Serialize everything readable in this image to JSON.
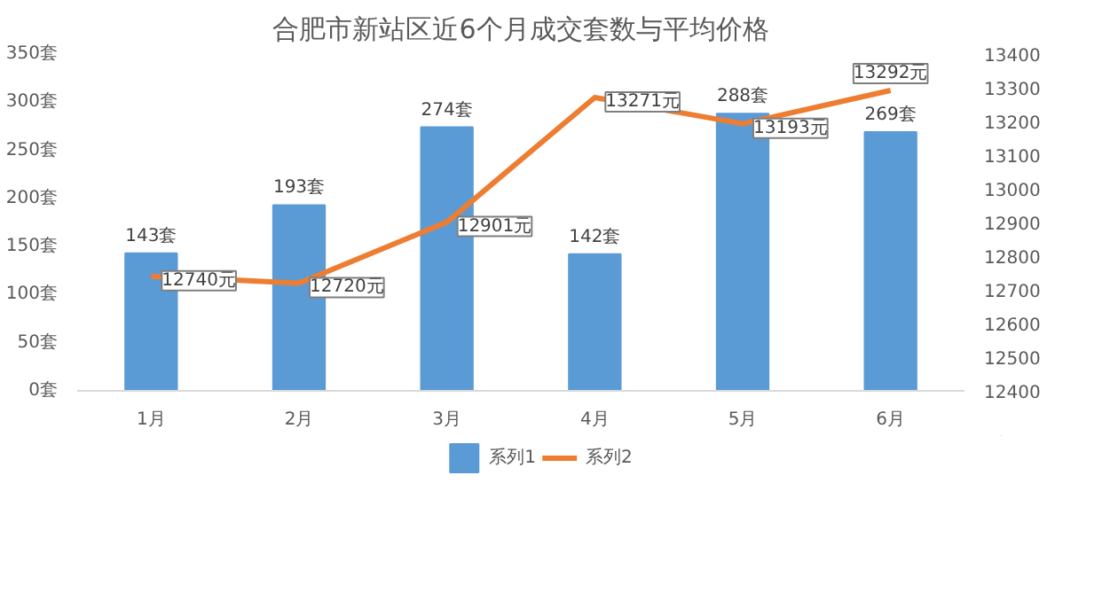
{
  "chart_data": {
    "type": "bar",
    "title": "合肥市新站区近6个月成交套数与平均价格",
    "categories": [
      "1月",
      "2月",
      "3月",
      "4月",
      "5月",
      "6月"
    ],
    "series": [
      {
        "name": "系列1",
        "color": "#5b9bd5",
        "values": [
          143,
          193,
          274,
          142,
          288,
          269
        ],
        "value_labels": [
          "143套",
          "193套",
          "274套",
          "142套",
          "288套",
          "269套"
        ]
      },
      {
        "name": "系列2",
        "type": "line",
        "axis": "y2",
        "color": "#ed7d31",
        "values": [
          12740,
          12720,
          12901,
          13271,
          13193,
          13292
        ],
        "value_labels": [
          "12740元",
          "12720元",
          "12901元",
          "13271元",
          "13193元",
          "13292元"
        ]
      }
    ],
    "ylim": [
      0,
      350
    ],
    "yticks": [
      {
        "value": 0,
        "label": "0套"
      },
      {
        "value": 50,
        "label": "50套"
      },
      {
        "value": 100,
        "label": "100套"
      },
      {
        "value": 150,
        "label": "150套"
      },
      {
        "value": 200,
        "label": "200套"
      },
      {
        "value": 250,
        "label": "250套"
      },
      {
        "value": 300,
        "label": "300套"
      },
      {
        "value": 350,
        "label": "350套"
      }
    ],
    "y2lim": [
      12400,
      13400
    ],
    "y2ticks": [
      12400,
      12500,
      12600,
      12700,
      12800,
      12900,
      13000,
      13100,
      13200,
      13300,
      13400
    ],
    "grid": false,
    "legend": "bottom"
  }
}
